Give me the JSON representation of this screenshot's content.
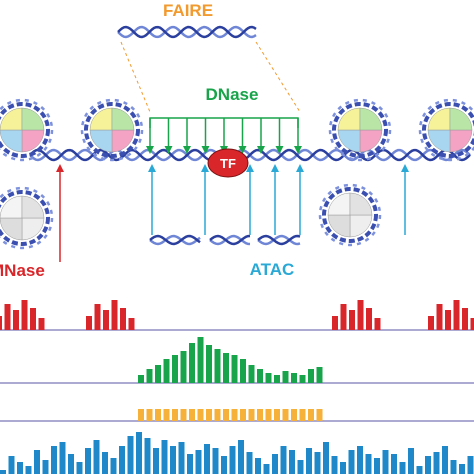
{
  "labels": {
    "faire": "FAIRE",
    "dnase": "DNase",
    "tf": "TF",
    "mnase": "MNase",
    "atac": "ATAC"
  }
}
